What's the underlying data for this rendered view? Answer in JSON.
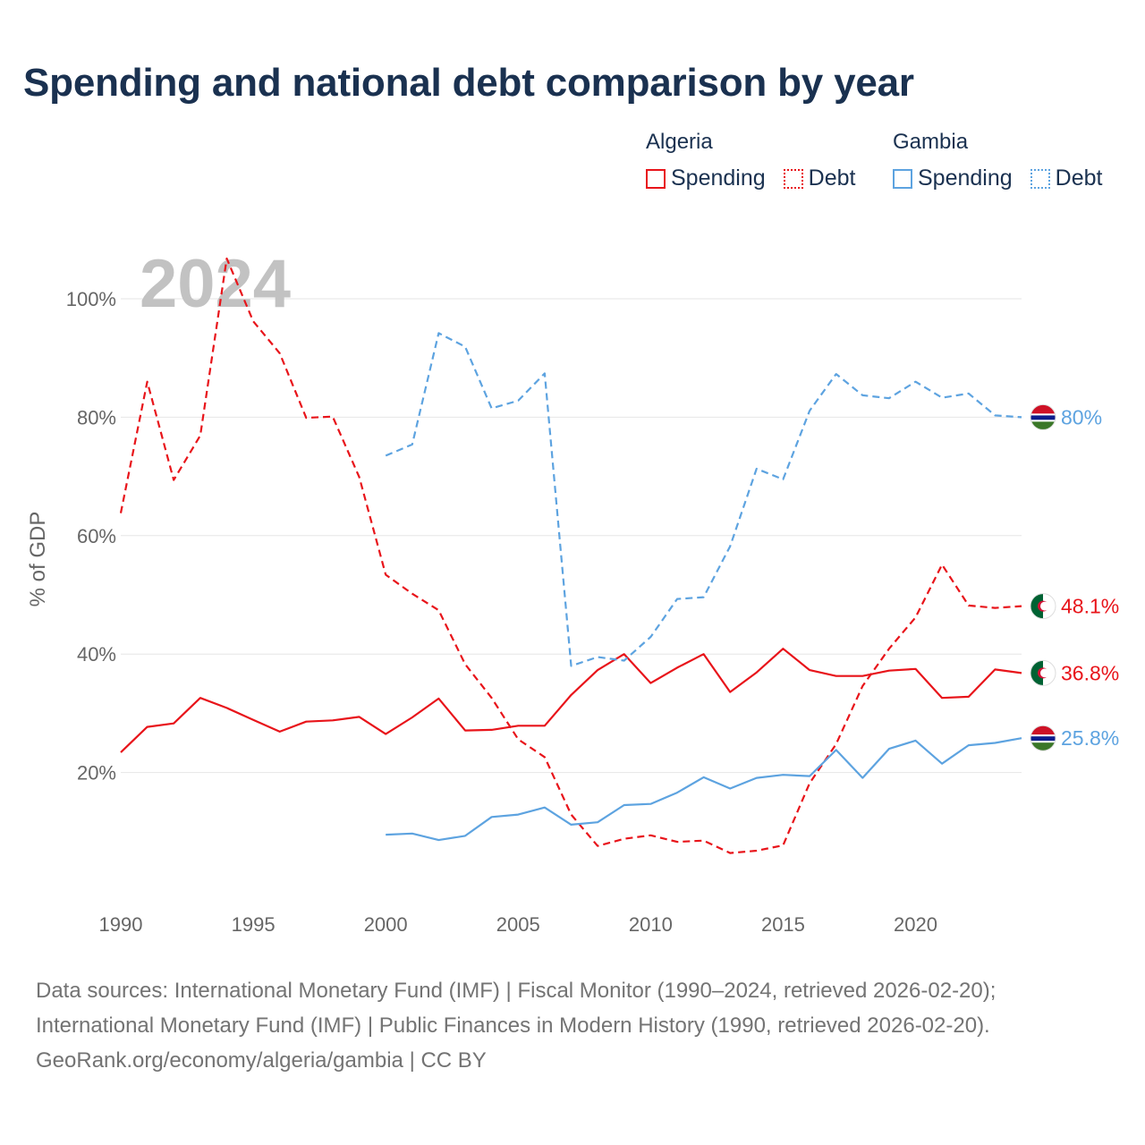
{
  "title": "Spending and national debt comparison by year",
  "year_label": "2024",
  "legend": {
    "groups": [
      {
        "name": "Algeria",
        "color": "#e8141a",
        "items": [
          {
            "label": "Spending",
            "style": "solid"
          },
          {
            "label": "Debt",
            "style": "dotted"
          }
        ]
      },
      {
        "name": "Gambia",
        "color": "#5da3e0",
        "items": [
          {
            "label": "Spending",
            "style": "solid"
          },
          {
            "label": "Debt",
            "style": "dotted"
          }
        ]
      }
    ]
  },
  "sources": [
    "Data sources: International Monetary Fund (IMF) | Fiscal Monitor (1990–2024, retrieved 2026-02-20);",
    "International Monetary Fund (IMF) | Public Finances in Modern History (1990, retrieved 2026-02-20).",
    "GeoRank.org/economy/algeria/gambia | CC BY"
  ],
  "chart_data": {
    "type": "line",
    "ylabel": "% of GDP",
    "xlim": [
      1990,
      2024
    ],
    "ylim": [
      0,
      100
    ],
    "x_ticks": [
      1990,
      1995,
      2000,
      2005,
      2010,
      2015,
      2020
    ],
    "y_ticks": [
      {
        "value": 20,
        "label": "20%"
      },
      {
        "value": 40,
        "label": "40%"
      },
      {
        "value": 60,
        "label": "60%"
      },
      {
        "value": 80,
        "label": "80%"
      },
      {
        "value": 100,
        "label": "100%"
      }
    ],
    "series": [
      {
        "name": "Algeria Spending",
        "country": "Algeria",
        "color": "#e8141a",
        "dash": "none",
        "end_label": "36.8%",
        "x": [
          1990,
          1991,
          1992,
          1993,
          1994,
          1995,
          1996,
          1997,
          1998,
          1999,
          2000,
          2001,
          2002,
          2003,
          2004,
          2005,
          2006,
          2007,
          2008,
          2009,
          2010,
          2011,
          2012,
          2013,
          2014,
          2015,
          2016,
          2017,
          2018,
          2019,
          2020,
          2021,
          2022,
          2023,
          2024
        ],
        "values": [
          23.4,
          27.7,
          28.3,
          32.6,
          30.9,
          28.9,
          26.9,
          28.6,
          28.8,
          29.4,
          26.5,
          29.3,
          32.5,
          27.1,
          27.2,
          27.9,
          27.9,
          33.1,
          37.3,
          40.0,
          35.1,
          37.7,
          40.0,
          33.6,
          36.9,
          40.9,
          37.3,
          36.3,
          36.3,
          37.2,
          37.5,
          32.6,
          32.8,
          37.4,
          36.8
        ]
      },
      {
        "name": "Algeria Debt",
        "country": "Algeria",
        "color": "#e8141a",
        "dash": "8 5",
        "end_label": "48.1%",
        "x": [
          1990,
          1991,
          1992,
          1993,
          1994,
          1995,
          1996,
          1997,
          1998,
          1999,
          2000,
          2001,
          2002,
          2003,
          2004,
          2005,
          2006,
          2007,
          2008,
          2009,
          2010,
          2011,
          2012,
          2013,
          2014,
          2015,
          2016,
          2017,
          2018,
          2019,
          2020,
          2021,
          2022,
          2023,
          2024
        ],
        "values": [
          63.8,
          86.0,
          69.4,
          76.9,
          106.8,
          96.2,
          90.8,
          79.9,
          80.1,
          69.9,
          53.4,
          50.2,
          47.4,
          38.3,
          32.6,
          25.6,
          22.6,
          12.9,
          7.6,
          8.8,
          9.4,
          8.3,
          8.5,
          6.4,
          6.8,
          7.7,
          18.2,
          24.8,
          34.6,
          40.9,
          46.2,
          55.1,
          48.2,
          47.8,
          48.1
        ]
      },
      {
        "name": "Gambia Spending",
        "country": "Gambia",
        "color": "#5da3e0",
        "dash": "none",
        "end_label": "25.8%",
        "x": [
          2000,
          2001,
          2002,
          2003,
          2004,
          2005,
          2006,
          2007,
          2008,
          2009,
          2010,
          2011,
          2012,
          2013,
          2014,
          2015,
          2016,
          2017,
          2018,
          2019,
          2020,
          2021,
          2022,
          2023,
          2024
        ],
        "values": [
          9.5,
          9.7,
          8.6,
          9.3,
          12.5,
          12.9,
          14.1,
          11.2,
          11.6,
          14.5,
          14.7,
          16.6,
          19.2,
          17.3,
          19.1,
          19.6,
          19.4,
          23.8,
          19.1,
          24.0,
          25.4,
          21.5,
          24.6,
          25.0,
          25.8
        ]
      },
      {
        "name": "Gambia Debt",
        "country": "Gambia",
        "color": "#5da3e0",
        "dash": "8 5",
        "end_label": "80%",
        "x": [
          2000,
          2001,
          2002,
          2003,
          2004,
          2005,
          2006,
          2007,
          2008,
          2009,
          2010,
          2011,
          2012,
          2013,
          2014,
          2015,
          2016,
          2017,
          2018,
          2019,
          2020,
          2021,
          2022,
          2023,
          2024
        ],
        "values": [
          73.5,
          75.4,
          94.2,
          91.9,
          81.5,
          82.8,
          87.4,
          38.0,
          39.5,
          38.9,
          42.9,
          49.3,
          49.6,
          58.2,
          71.3,
          69.5,
          81.1,
          87.3,
          83.7,
          83.2,
          86.0,
          83.3,
          84.0,
          80.3,
          80.0
        ]
      }
    ]
  }
}
